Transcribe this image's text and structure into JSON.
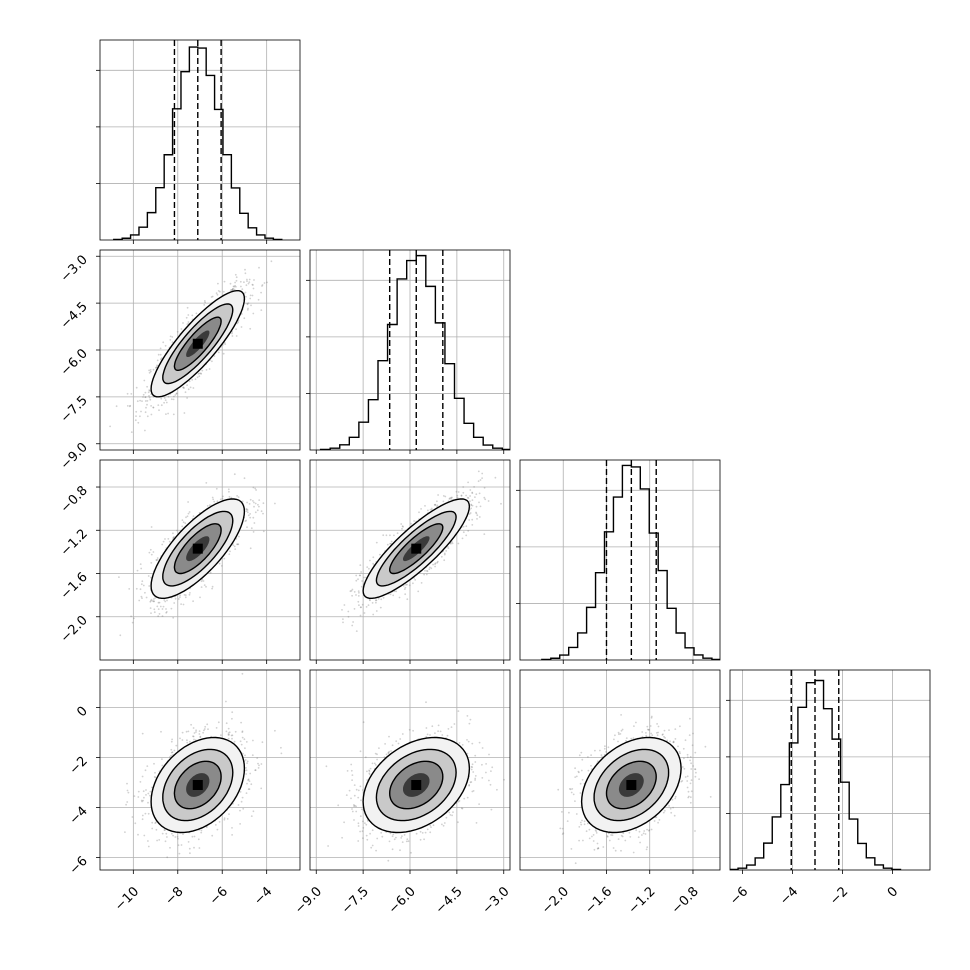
{
  "chart_data": {
    "type": "corner",
    "parameters": [
      {
        "range": [
          -11.5,
          -2.5
        ],
        "ticks": [
          -10,
          -8,
          -6,
          -4
        ],
        "tick_labels": [
          "−10",
          "−8",
          "−6",
          "−4"
        ],
        "mean": -7.1,
        "sigma": 1.05,
        "quantiles": [
          -8.15,
          -7.1,
          -6.05
        ],
        "hist_ticks": [
          20,
          40,
          60
        ]
      },
      {
        "range": [
          -9.2,
          -2.8
        ],
        "ticks": [
          -9.0,
          -7.5,
          -6.0,
          -4.5,
          -3.0
        ],
        "tick_labels": [
          "−9.0",
          "−7.5",
          "−6.0",
          "−4.5",
          "−3.0"
        ],
        "mean": -5.8,
        "sigma": 0.85,
        "quantiles": [
          -6.65,
          -5.8,
          -4.95
        ],
        "hist_ticks": [
          20,
          40,
          60
        ]
      },
      {
        "range": [
          -2.4,
          -0.55
        ],
        "ticks": [
          -2.0,
          -1.6,
          -1.2,
          -0.8
        ],
        "tick_labels": [
          "−2.0",
          "−1.6",
          "−1.2",
          "−0.8"
        ],
        "mean": -1.37,
        "sigma": 0.23,
        "quantiles": [
          -1.6,
          -1.37,
          -1.14
        ],
        "hist_ticks": [
          20,
          40,
          60
        ]
      },
      {
        "range": [
          -6.5,
          1.5
        ],
        "ticks": [
          -6,
          -4,
          -2,
          0
        ],
        "tick_labels": [
          "−6",
          "−4",
          "−2",
          "0"
        ],
        "mean": -3.1,
        "sigma": 0.95,
        "quantiles": [
          -4.05,
          -3.1,
          -2.15
        ],
        "hist_ticks": [
          20,
          40,
          60
        ]
      }
    ],
    "correlations": {
      "1-0": 0.85,
      "2-0": 0.75,
      "2-1": 0.85,
      "3-0": 0.35,
      "3-1": 0.35,
      "3-2": 0.35
    },
    "histogram_peak": 68,
    "grid": true
  }
}
